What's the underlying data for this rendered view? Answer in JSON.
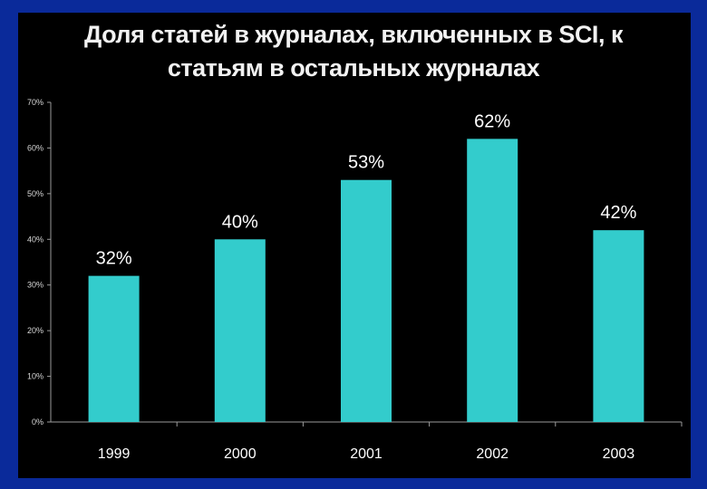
{
  "chart_data": {
    "type": "bar",
    "title_lines": [
      "Доля статей в журналах, включенных в SCI, к",
      "статьям в остальных журналах"
    ],
    "categories": [
      "1999",
      "2000",
      "2001",
      "2002",
      "2003"
    ],
    "values": [
      32,
      40,
      53,
      62,
      42
    ],
    "value_labels": [
      "32%",
      "40%",
      "53%",
      "62%",
      "42%"
    ],
    "y_ticks": [
      "0%",
      "10%",
      "20%",
      "30%",
      "40%",
      "50%",
      "60%",
      "70%"
    ],
    "ylim": [
      0,
      70
    ],
    "xlabel": "",
    "ylabel": "",
    "grid": false,
    "colors": {
      "bar": "#33cccc",
      "text": "#ffffff",
      "axis": "#9a9a9a",
      "background": "#000000",
      "border": "#0a2a9a"
    }
  }
}
